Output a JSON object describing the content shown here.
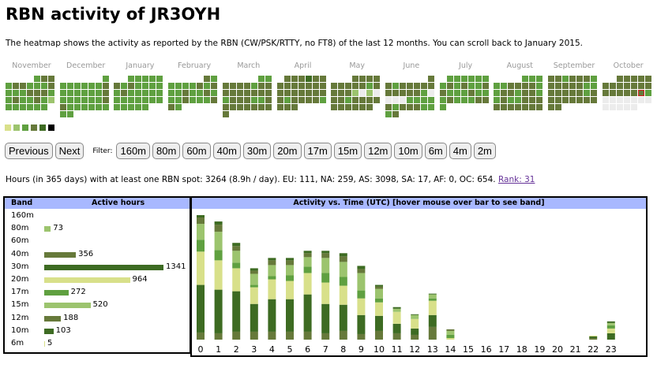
{
  "title": "RBN activity of JR3OYH",
  "description": "The heatmap shows the activity as reported by the RBN (CW/PSK/RTTY, no FT8) of the last 12 months. You can scroll back to January 2015.",
  "heatmap": {
    "level_colors": [
      "#ececec",
      "#d9e08a",
      "#9cc46e",
      "#5fa040",
      "#66793a",
      "#3d6b22",
      "#000000"
    ],
    "months": [
      {
        "name": "November",
        "offset": 4,
        "levels": "344344333433344433433432333333"
      },
      {
        "name": "December",
        "offset": 6,
        "levels": "3333333433333343333334433333333"
      },
      {
        "name": "January",
        "offset": 2,
        "levels": "3333343433333433333333333333333"
      },
      {
        "name": "February",
        "offset": 5,
        "levels": "4333334343343343334333443"
      },
      {
        "name": "March",
        "offset": 5,
        "levels": "3344443444444444344433444444444"
      },
      {
        "name": "April",
        "offset": 1,
        "levels": "444544444444444444444344443444"
      },
      {
        "name": "May",
        "offset": 3,
        "levels": "4444444443444420204434444444444"
      },
      {
        "name": "June",
        "offset": 6,
        "levels": "4434444444444300003333434443334"
      },
      {
        "name": "July",
        "offset": 1,
        "levels": "3333333434334433343334333443"
      },
      {
        "name": "August",
        "offset": 4,
        "levels": "3333344443344344334334444444444"
      },
      {
        "name": "September",
        "offset": 0,
        "levels": "443444344444334444434444444444"
      },
      {
        "name": "October",
        "offset": 2,
        "levels": "4444444444444444443000000000000",
        "today": 17
      }
    ]
  },
  "legend_levels": [
    1,
    2,
    3,
    4,
    5,
    6
  ],
  "nav": {
    "previous": "Previous",
    "next": "Next",
    "filter_label": "Filter:",
    "bands": [
      "160m",
      "80m",
      "60m",
      "40m",
      "30m",
      "20m",
      "17m",
      "15m",
      "12m",
      "10m",
      "6m",
      "4m",
      "2m"
    ]
  },
  "stats": {
    "text": "Hours (in 365 days) with at least one RBN spot: 3264 (8.9h / day). EU: 111, NA: 259, AS: 3098, SA: 17, AF: 0, OC: 654. ",
    "rank": "Rank: 31"
  },
  "band_table": {
    "col_band": "Band",
    "col_hours": "Active hours",
    "rows": [
      {
        "band": "160m",
        "hours": null,
        "color": ""
      },
      {
        "band": "80m",
        "hours": 73,
        "color": "#9cc46e"
      },
      {
        "band": "60m",
        "hours": null,
        "color": ""
      },
      {
        "band": "40m",
        "hours": 356,
        "color": "#66793a"
      },
      {
        "band": "30m",
        "hours": 1341,
        "color": "#3d6b22"
      },
      {
        "band": "20m",
        "hours": 964,
        "color": "#d8e08a"
      },
      {
        "band": "17m",
        "hours": 272,
        "color": "#5fa040"
      },
      {
        "band": "15m",
        "hours": 520,
        "color": "#9cc46e"
      },
      {
        "band": "12m",
        "hours": 188,
        "color": "#66793a"
      },
      {
        "band": "10m",
        "hours": 103,
        "color": "#3d6b22"
      },
      {
        "band": "6m",
        "hours": 5,
        "color": "#d8e08a"
      }
    ]
  },
  "chart_data": {
    "type": "bar",
    "stacked": true,
    "title": "Activity vs. Time (UTC) [hover mouse over bar to see band]",
    "categories": [
      "0",
      "1",
      "2",
      "3",
      "4",
      "5",
      "6",
      "7",
      "8",
      "9",
      "10",
      "11",
      "12",
      "13",
      "14",
      "15",
      "16",
      "17",
      "18",
      "19",
      "20",
      "21",
      "22",
      "23"
    ],
    "series": [
      {
        "name": "40m",
        "color": "#66793a",
        "values": [
          27,
          24,
          30,
          30,
          30,
          30,
          30,
          24,
          33,
          21,
          33,
          24,
          18,
          48,
          0,
          0,
          0,
          0,
          0,
          0,
          0,
          0,
          6,
          0
        ]
      },
      {
        "name": "30m",
        "color": "#3d6b22",
        "values": [
          180,
          165,
          153,
          105,
          123,
          123,
          141,
          111,
          99,
          72,
          57,
          36,
          24,
          45,
          0,
          0,
          0,
          0,
          0,
          0,
          0,
          0,
          6,
          24
        ]
      },
      {
        "name": "20m",
        "color": "#d8e08a",
        "values": [
          126,
          111,
          87,
          63,
          75,
          69,
          81,
          81,
          72,
          63,
          51,
          45,
          36,
          54,
          6,
          0,
          0,
          0,
          0,
          0,
          0,
          0,
          3,
          18
        ]
      },
      {
        "name": "17m",
        "color": "#5fa040",
        "values": [
          45,
          39,
          21,
          9,
          12,
          21,
          24,
          36,
          33,
          30,
          15,
          0,
          0,
          9,
          12,
          0,
          0,
          0,
          0,
          0,
          0,
          0,
          0,
          12
        ]
      },
      {
        "name": "15m",
        "color": "#9cc46e",
        "values": [
          60,
          69,
          45,
          42,
          42,
          39,
          36,
          57,
          57,
          66,
          36,
          12,
          15,
          15,
          15,
          0,
          0,
          0,
          0,
          0,
          0,
          0,
          0,
          9
        ]
      },
      {
        "name": "12m",
        "color": "#66793a",
        "values": [
          24,
          27,
          18,
          12,
          18,
          18,
          15,
          18,
          21,
          15,
          9,
          0,
          0,
          0,
          6,
          0,
          0,
          0,
          0,
          0,
          0,
          0,
          0,
          0
        ]
      },
      {
        "name": "10m",
        "color": "#3d6b22",
        "values": [
          9,
          12,
          12,
          9,
          9,
          9,
          9,
          9,
          12,
          12,
          6,
          6,
          3,
          3,
          0,
          0,
          0,
          0,
          0,
          0,
          0,
          0,
          0,
          6
        ]
      }
    ]
  }
}
